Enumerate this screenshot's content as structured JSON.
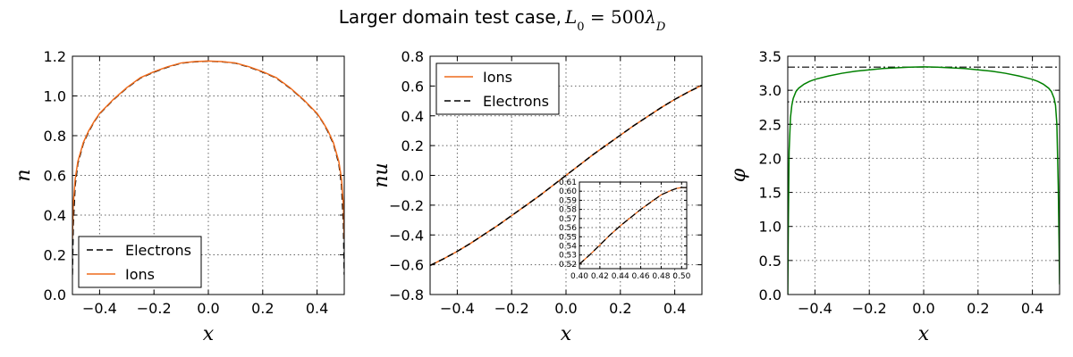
{
  "figure": {
    "title_text": "Larger domain test case, ",
    "title_math": "L₀ = 500λ_D"
  },
  "colors": {
    "ions": "#ee6a1b",
    "electrons": "#000000",
    "phi": "#008000",
    "background": "#ffffff"
  },
  "chart_data": [
    {
      "id": "density",
      "type": "line",
      "xlabel": "x",
      "ylabel": "n",
      "xlim": [
        -0.5,
        0.5
      ],
      "ylim": [
        0.0,
        1.2
      ],
      "xticks": [
        -0.4,
        -0.2,
        0.0,
        0.2,
        0.4
      ],
      "xtick_labels": [
        "−0.4",
        "−0.2",
        "0.0",
        "0.2",
        "0.4"
      ],
      "yticks": [
        0.0,
        0.2,
        0.4,
        0.6,
        0.8,
        1.0,
        1.2
      ],
      "ytick_labels": [
        "0.0",
        "0.2",
        "0.4",
        "0.6",
        "0.8",
        "1.0",
        "1.2"
      ],
      "grid": true,
      "legend": {
        "placement": "bottom-left",
        "entries": [
          "Electrons",
          "Ions"
        ]
      },
      "series": [
        {
          "name": "Electrons",
          "style": "dashed",
          "color": "#000000",
          "x": [
            -0.5,
            -0.497,
            -0.49,
            -0.48,
            -0.46,
            -0.44,
            -0.42,
            -0.4,
            -0.35,
            -0.3,
            -0.25,
            -0.2,
            -0.15,
            -0.1,
            -0.05,
            0.0,
            0.05,
            0.1,
            0.15,
            0.2,
            0.25,
            0.3,
            0.35,
            0.4,
            0.42,
            0.44,
            0.46,
            0.48,
            0.49,
            0.497,
            0.5
          ],
          "y": [
            0.1,
            0.35,
            0.55,
            0.66,
            0.76,
            0.82,
            0.87,
            0.91,
            0.98,
            1.04,
            1.09,
            1.12,
            1.145,
            1.165,
            1.172,
            1.175,
            1.172,
            1.165,
            1.145,
            1.12,
            1.09,
            1.04,
            0.98,
            0.91,
            0.87,
            0.82,
            0.76,
            0.66,
            0.55,
            0.35,
            0.1
          ]
        },
        {
          "name": "Ions",
          "style": "solid",
          "color": "#ee6a1b",
          "x": [
            -0.5,
            -0.497,
            -0.49,
            -0.48,
            -0.46,
            -0.44,
            -0.42,
            -0.4,
            -0.35,
            -0.3,
            -0.25,
            -0.2,
            -0.15,
            -0.1,
            -0.05,
            0.0,
            0.05,
            0.1,
            0.15,
            0.2,
            0.25,
            0.3,
            0.35,
            0.4,
            0.42,
            0.44,
            0.46,
            0.48,
            0.49,
            0.497,
            0.5
          ],
          "y": [
            0.28,
            0.45,
            0.58,
            0.67,
            0.765,
            0.825,
            0.872,
            0.912,
            0.982,
            1.042,
            1.092,
            1.122,
            1.147,
            1.166,
            1.173,
            1.176,
            1.173,
            1.166,
            1.147,
            1.122,
            1.092,
            1.042,
            0.982,
            0.912,
            0.872,
            0.825,
            0.765,
            0.67,
            0.58,
            0.45,
            0.28
          ]
        }
      ]
    },
    {
      "id": "flux",
      "type": "line",
      "xlabel": "x",
      "ylabel": "nu",
      "xlim": [
        -0.5,
        0.5
      ],
      "ylim": [
        -0.8,
        0.8
      ],
      "xticks": [
        -0.4,
        -0.2,
        0.0,
        0.2,
        0.4
      ],
      "xtick_labels": [
        "−0.4",
        "−0.2",
        "0.0",
        "0.2",
        "0.4"
      ],
      "yticks": [
        -0.8,
        -0.6,
        -0.4,
        -0.2,
        0.0,
        0.2,
        0.4,
        0.6,
        0.8
      ],
      "ytick_labels": [
        "−0.8",
        "−0.6",
        "−0.4",
        "−0.2",
        "0.0",
        "0.2",
        "0.4",
        "0.6",
        "0.8"
      ],
      "grid": true,
      "legend": {
        "placement": "top-left",
        "entries": [
          "Ions",
          "Electrons"
        ]
      },
      "series": [
        {
          "name": "Ions",
          "style": "solid",
          "color": "#ee6a1b",
          "x": [
            -0.5,
            -0.45,
            -0.4,
            -0.35,
            -0.3,
            -0.25,
            -0.2,
            -0.15,
            -0.1,
            -0.05,
            0.0,
            0.05,
            0.1,
            0.15,
            0.2,
            0.25,
            0.3,
            0.35,
            0.4,
            0.45,
            0.5
          ],
          "y": [
            -0.605,
            -0.56,
            -0.51,
            -0.455,
            -0.395,
            -0.335,
            -0.27,
            -0.205,
            -0.14,
            -0.07,
            0.0,
            0.07,
            0.14,
            0.205,
            0.27,
            0.335,
            0.395,
            0.455,
            0.51,
            0.56,
            0.605
          ]
        },
        {
          "name": "Electrons",
          "style": "dashed",
          "color": "#000000",
          "x": [
            -0.5,
            -0.45,
            -0.4,
            -0.35,
            -0.3,
            -0.25,
            -0.2,
            -0.15,
            -0.1,
            -0.05,
            0.0,
            0.05,
            0.1,
            0.15,
            0.2,
            0.25,
            0.3,
            0.35,
            0.4,
            0.45,
            0.5
          ],
          "y": [
            -0.605,
            -0.56,
            -0.51,
            -0.455,
            -0.395,
            -0.335,
            -0.27,
            -0.205,
            -0.14,
            -0.07,
            0.0,
            0.07,
            0.14,
            0.205,
            0.27,
            0.335,
            0.395,
            0.455,
            0.51,
            0.56,
            0.605
          ]
        }
      ],
      "inset": {
        "xlim": [
          0.4,
          0.505
        ],
        "ylim": [
          0.515,
          0.61
        ],
        "xticks": [
          0.4,
          0.42,
          0.44,
          0.46,
          0.48,
          0.5
        ],
        "xtick_labels": [
          "0.40",
          "0.42",
          "0.44",
          "0.46",
          "0.48",
          "0.50"
        ],
        "yticks": [
          0.52,
          0.53,
          0.54,
          0.55,
          0.56,
          0.57,
          0.58,
          0.59,
          0.6,
          0.61
        ],
        "ytick_labels": [
          "0.52",
          "0.53",
          "0.54",
          "0.55",
          "0.56",
          "0.57",
          "0.58",
          "0.59",
          "0.60",
          "0.61"
        ],
        "grid": true,
        "series": [
          {
            "name": "Ions",
            "style": "solid",
            "color": "#ee6a1b",
            "x": [
              0.4,
              0.41,
              0.42,
              0.43,
              0.44,
              0.45,
              0.46,
              0.47,
              0.48,
              0.49,
              0.495,
              0.5,
              0.505
            ],
            "y": [
              0.52,
              0.53,
              0.541,
              0.552,
              0.562,
              0.571,
              0.58,
              0.588,
              0.596,
              0.601,
              0.603,
              0.604,
              0.604
            ]
          },
          {
            "name": "Electrons",
            "style": "dashed",
            "color": "#000000",
            "x": [
              0.4,
              0.41,
              0.42,
              0.43,
              0.44,
              0.45,
              0.46,
              0.47,
              0.48,
              0.49,
              0.495,
              0.5,
              0.505
            ],
            "y": [
              0.52,
              0.53,
              0.541,
              0.552,
              0.562,
              0.571,
              0.58,
              0.588,
              0.596,
              0.601,
              0.603,
              0.604,
              0.604
            ]
          }
        ]
      }
    },
    {
      "id": "potential",
      "type": "line",
      "xlabel": "x",
      "ylabel": "φ",
      "xlim": [
        -0.5,
        0.5
      ],
      "ylim": [
        0.0,
        3.5
      ],
      "xticks": [
        -0.4,
        -0.2,
        0.0,
        0.2,
        0.4
      ],
      "xtick_labels": [
        "−0.4",
        "−0.2",
        "0.0",
        "0.2",
        "0.4"
      ],
      "yticks": [
        0.0,
        0.5,
        1.0,
        1.5,
        2.0,
        2.5,
        3.0,
        3.5
      ],
      "ytick_labels": [
        "0.0",
        "0.5",
        "1.0",
        "1.5",
        "2.0",
        "2.5",
        "3.0",
        "3.5"
      ],
      "grid": true,
      "hlines": [
        {
          "y": 3.34,
          "style": "dashdot",
          "color": "#000000"
        },
        {
          "y": 2.83,
          "style": "dotted",
          "color": "#000000"
        }
      ],
      "series": [
        {
          "name": "phi",
          "style": "solid",
          "color": "#008000",
          "x": [
            -0.5,
            -0.498,
            -0.495,
            -0.49,
            -0.485,
            -0.48,
            -0.47,
            -0.46,
            -0.44,
            -0.42,
            -0.4,
            -0.35,
            -0.3,
            -0.25,
            -0.2,
            -0.15,
            -0.1,
            -0.05,
            0.0,
            0.05,
            0.1,
            0.15,
            0.2,
            0.25,
            0.3,
            0.35,
            0.4,
            0.42,
            0.44,
            0.46,
            0.47,
            0.48,
            0.485,
            0.49,
            0.495,
            0.498,
            0.5
          ],
          "y": [
            0.0,
            1.0,
            2.1,
            2.6,
            2.78,
            2.88,
            2.98,
            3.03,
            3.09,
            3.13,
            3.16,
            3.21,
            3.25,
            3.28,
            3.3,
            3.32,
            3.33,
            3.34,
            3.345,
            3.34,
            3.33,
            3.32,
            3.3,
            3.28,
            3.25,
            3.21,
            3.16,
            3.13,
            3.09,
            3.03,
            2.98,
            2.88,
            2.78,
            2.5,
            1.6,
            0.8,
            0.15
          ]
        }
      ]
    }
  ]
}
